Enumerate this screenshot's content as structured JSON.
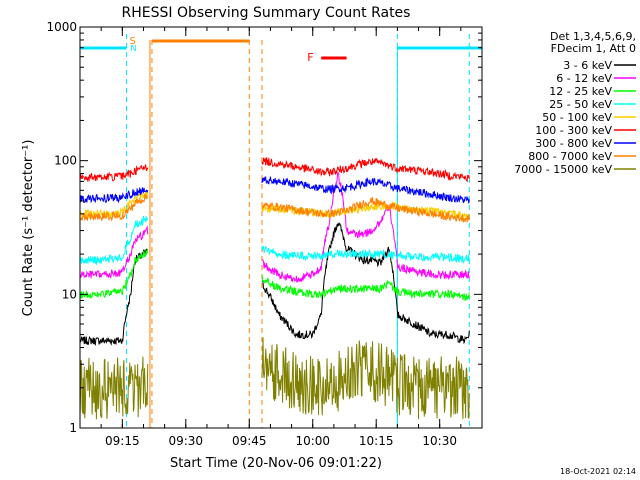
{
  "chart_data": {
    "type": "line",
    "title": "RHESSI Observing Summary Count Rates",
    "xlabel": "Start Time (20-Nov-06 09:01:22)",
    "ylabel": "Count Rate (s⁻¹ detector⁻¹)",
    "yscale": "log",
    "ylim": [
      1,
      1000
    ],
    "xlim": [
      "09:05",
      "10:40"
    ],
    "y_ticks": [
      "1",
      "10",
      "100",
      "1000"
    ],
    "x_ticks": [
      "09:15",
      "09:30",
      "09:45",
      "10:00",
      "10:15",
      "10:30"
    ],
    "legend_header": [
      "Det 1,3,4,5,6,9,",
      "FDecim 1, Att 0"
    ],
    "legend_position": "right",
    "timestamp": "18-Oct-2021 02:14",
    "night_bars": [
      [
        "09:05",
        "09:16"
      ],
      [
        "10:20",
        "10:40"
      ]
    ],
    "saa_bar": [
      "09:22",
      "09:45"
    ],
    "flare_bar": [
      "10:02",
      "10:08"
    ],
    "markers": {
      "saa_letter": "S",
      "night_letter": "N",
      "flare_letter": "F"
    },
    "dashed_lines": {
      "cyan": [
        "09:16",
        "10:20",
        "10:37"
      ],
      "orange": [
        "09:22",
        "09:45",
        "09:48"
      ]
    },
    "gap": [
      "09:22",
      "09:48"
    ],
    "times_before": [
      "09:05",
      "09:10",
      "09:15",
      "09:17",
      "09:18",
      "09:20",
      "09:21"
    ],
    "times_after": [
      "09:48",
      "09:52",
      "09:56",
      "10:00",
      "10:02",
      "10:04",
      "10:06",
      "10:08",
      "10:10",
      "10:12",
      "10:14",
      "10:16",
      "10:18",
      "10:20",
      "10:24",
      "10:28",
      "10:32",
      "10:36",
      "10:37"
    ],
    "series": [
      {
        "name": "3 - 6 keV",
        "color": "#000000",
        "before": [
          4.5,
          4.5,
          4.5,
          10,
          18,
          20,
          21
        ],
        "after": [
          12,
          7,
          5,
          5,
          7,
          22,
          35,
          22,
          20,
          18,
          18,
          17,
          22,
          7,
          6,
          5,
          5,
          4.5,
          5
        ]
      },
      {
        "name": "6 - 12 keV",
        "color": "#ff00ff",
        "before": [
          14,
          14,
          14.5,
          20,
          25,
          28,
          30
        ],
        "after": [
          17,
          14,
          13,
          14,
          16,
          35,
          80,
          30,
          28,
          28,
          30,
          35,
          45,
          16,
          15,
          14,
          14,
          14,
          14
        ]
      },
      {
        "name": "12 - 25 keV",
        "color": "#00ff00",
        "before": [
          10,
          10,
          10.5,
          14,
          18,
          20,
          21
        ],
        "after": [
          13,
          11,
          10.5,
          10,
          10,
          10.5,
          11,
          11,
          11,
          11,
          11,
          11,
          12,
          10.5,
          10,
          10,
          10,
          9.5,
          10
        ]
      },
      {
        "name": "25 - 50 keV",
        "color": "#00ffff",
        "before": [
          18,
          18,
          19,
          27,
          33,
          36,
          38
        ],
        "after": [
          22,
          20,
          19.5,
          19.5,
          19.5,
          20,
          20,
          20,
          20,
          20,
          20,
          20,
          20,
          19.5,
          19,
          19,
          19,
          18.5,
          18.5
        ]
      },
      {
        "name": "50 - 100 keV",
        "color": "#ffcc00",
        "before": [
          40,
          40,
          41,
          48,
          52,
          55,
          56
        ],
        "after": [
          44,
          43,
          42,
          41,
          40,
          40,
          41,
          42,
          43,
          44,
          45,
          46,
          46,
          45,
          43,
          42,
          40,
          39,
          38
        ]
      },
      {
        "name": "100 - 300 keV",
        "color": "#ff0000",
        "before": [
          75,
          75,
          76,
          80,
          84,
          88,
          90
        ],
        "after": [
          100,
          95,
          90,
          85,
          82,
          82,
          85,
          88,
          92,
          96,
          98,
          96,
          92,
          88,
          85,
          82,
          78,
          75,
          74
        ]
      },
      {
        "name": "300 - 800 keV",
        "color": "#0000ff",
        "before": [
          52,
          52,
          53,
          56,
          58,
          60,
          61
        ],
        "after": [
          72,
          70,
          67,
          64,
          62,
          61,
          62,
          63,
          65,
          68,
          70,
          68,
          65,
          62,
          59,
          56,
          53,
          51,
          50
        ]
      },
      {
        "name": "800 - 7000 keV",
        "color": "#ff8000",
        "before": [
          38,
          38,
          39,
          44,
          48,
          52,
          54
        ],
        "after": [
          46,
          45,
          43,
          41,
          40,
          40,
          41,
          42,
          45,
          48,
          50,
          48,
          46,
          44,
          42,
          40,
          38,
          37,
          37
        ]
      },
      {
        "name": "7000 - 15000 keV",
        "color": "#808000",
        "before": [
          2,
          2,
          2,
          2,
          2,
          2,
          2
        ],
        "after": [
          2.8,
          2.5,
          2.2,
          2,
          2,
          2.1,
          2.3,
          2.5,
          2.8,
          2.8,
          2.7,
          2.5,
          2.3,
          2.1,
          2,
          2,
          2,
          2,
          2
        ]
      }
    ]
  }
}
